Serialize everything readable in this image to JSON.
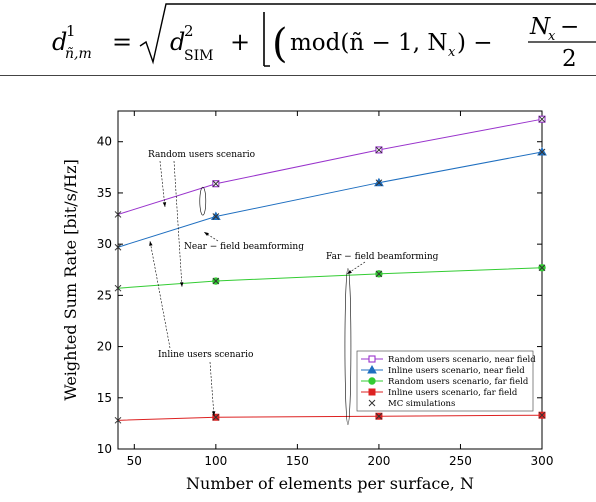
{
  "equation": {
    "lhs_base": "d",
    "lhs_sup": "1",
    "lhs_sub": "ñ,m",
    "equals": "=",
    "term1_base": "d",
    "term1_sup": "2",
    "term1_sub": "SIM",
    "plus": "+",
    "func": "mod(ñ − 1, N",
    "func_sub": "x",
    "func_close": ") −",
    "frac_num": "N",
    "frac_num_sub": "x",
    "frac_num_tail": " −",
    "frac_den": "2"
  },
  "chart_data": {
    "type": "line",
    "xlabel": "Number of elements per surface, N",
    "ylabel": "Weighted Sum Rate [bit/s/Hz]",
    "xlim": [
      40,
      300
    ],
    "ylim": [
      10,
      43
    ],
    "xticks": [
      50,
      100,
      150,
      200,
      250,
      300
    ],
    "yticks": [
      10,
      15,
      20,
      25,
      30,
      35,
      40
    ],
    "grid": false,
    "legend_position": "lower-right",
    "x": [
      40,
      100,
      200,
      300
    ],
    "series": [
      {
        "name": "Random users scenario, near field",
        "color": "#9933cc",
        "marker": "square-open",
        "values": [
          32.9,
          35.9,
          39.2,
          42.2
        ]
      },
      {
        "name": "Inline users scenario, near field",
        "color": "#1f6fc0",
        "marker": "triangle",
        "values": [
          29.7,
          32.7,
          36.0,
          39.0
        ]
      },
      {
        "name": "Random users scenario, far field",
        "color": "#33cc33",
        "marker": "circle",
        "values": [
          25.7,
          26.4,
          27.1,
          27.7
        ]
      },
      {
        "name": "Inline users scenario, far field",
        "color": "#dd2222",
        "marker": "square",
        "values": [
          12.8,
          13.1,
          13.2,
          13.3
        ]
      }
    ],
    "mc_legend_label": "MC simulations",
    "annotations": [
      {
        "text": "Random users scenario"
      },
      {
        "text": "Near − field beamforming"
      },
      {
        "text": "Far − field beamforming"
      },
      {
        "text": "Inline users scenario"
      }
    ]
  }
}
